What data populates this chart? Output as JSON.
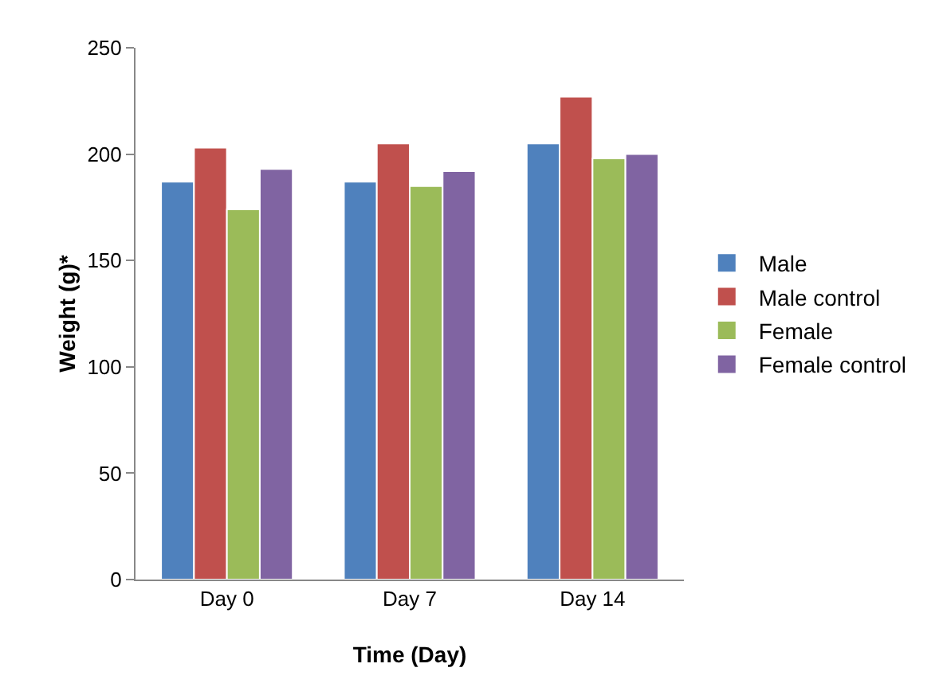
{
  "chart_data": {
    "type": "bar",
    "xlabel": "Time (Day)",
    "ylabel": "Weight (g)*",
    "categories": [
      "Day 0",
      "Day 7",
      "Day 14"
    ],
    "series": [
      {
        "name": "Male",
        "color": "#4f81bd",
        "values": [
          187,
          187,
          205
        ]
      },
      {
        "name": "Male control",
        "color": "#c0504d",
        "values": [
          203,
          205,
          227
        ]
      },
      {
        "name": "Female",
        "color": "#9bbb59",
        "values": [
          174,
          185,
          198
        ]
      },
      {
        "name": "Female control",
        "color": "#8064a2",
        "values": [
          193,
          192,
          200
        ]
      }
    ],
    "ylim": [
      0,
      250
    ],
    "yticks": [
      0,
      50,
      100,
      150,
      200,
      250
    ],
    "grid": false,
    "legend": "right"
  }
}
